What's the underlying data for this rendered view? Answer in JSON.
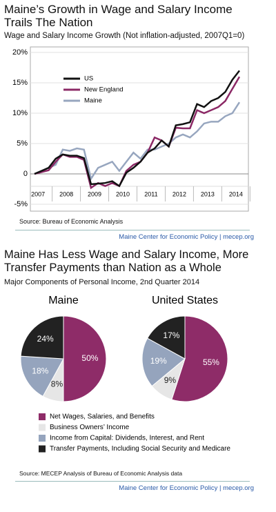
{
  "chart_data": [
    {
      "type": "line",
      "title": "Maine’s Growth in Wage and Salary Income Trails The Nation",
      "subtitle": "Wage and Salary Income Growth (Not inflation-adjusted, 2007Q1=0)",
      "categories": [
        null,
        "2007",
        null,
        null,
        null,
        "2008",
        null,
        null,
        null,
        "2009",
        null,
        null,
        null,
        "2010",
        null,
        null,
        null,
        "2011",
        null,
        null,
        null,
        "2012",
        null,
        null,
        null,
        "2013",
        null,
        null,
        null,
        "2014"
      ],
      "ylim": [
        -5,
        20
      ],
      "yticks": [
        {
          "value": -5,
          "label": "-5%"
        },
        0,
        {
          "value": 5,
          "label": "5%"
        },
        {
          "value": 10,
          "label": "10%"
        },
        {
          "value": 15,
          "label": "15%"
        },
        {
          "value": 20,
          "label": "20%"
        }
      ],
      "grid": true,
      "series": [
        {
          "name": "US",
          "color": "#111111",
          "values": [
            0,
            0.5,
            1,
            2.5,
            3.2,
            3,
            3,
            2.6,
            -1.7,
            -1.6,
            -1.5,
            -1.2,
            -2,
            0.2,
            1,
            2,
            3.5,
            4.2,
            5.5,
            4.5,
            8,
            8.2,
            8.5,
            11.5,
            11,
            12,
            12.5,
            13.5,
            15.5,
            17
          ]
        },
        {
          "name": "New England",
          "color": "#8b2865",
          "values": [
            0,
            0.3,
            0.6,
            2,
            3.2,
            2.8,
            2.8,
            2.3,
            -2.3,
            -1.5,
            -2,
            -1.5,
            -2,
            0.5,
            1.5,
            2,
            3.5,
            6,
            5.5,
            4.5,
            7.6,
            7.5,
            7.5,
            10.5,
            10,
            10.5,
            11,
            12,
            14,
            16
          ]
        },
        {
          "name": "Maine",
          "color": "#97a6bf",
          "values": [
            0,
            0.5,
            1,
            1.5,
            4,
            3.8,
            4.2,
            4,
            -0.8,
            1,
            1.5,
            2,
            0.5,
            2,
            3.5,
            2.5,
            4,
            4,
            4.5,
            5,
            6,
            6.5,
            6,
            7,
            8.3,
            8.6,
            8.6,
            9.5,
            10,
            11.8
          ]
        }
      ],
      "source": "Source: Bureau of Economic Analysis",
      "footer": "Maine Center for Economic Policy | mecep.org"
    },
    {
      "type": "pie",
      "title": "Maine",
      "categories": [
        "Net Wages, Salaries, and Benefits",
        "Business Owners’ Income",
        "Income from Capital: Dividends, Interest, and Rent",
        "Transfer Payments, Including Social Security and Medicare"
      ],
      "values": [
        50,
        8,
        18,
        24
      ],
      "value_labels": [
        "50%",
        "8%",
        "18%",
        "24%"
      ],
      "colors": [
        "#8e2c68",
        "#e6e6e6",
        "#95a4bd",
        "#222222"
      ]
    },
    {
      "type": "pie",
      "title": "United States",
      "categories": [
        "Net Wages, Salaries, and Benefits",
        "Business Owners’ Income",
        "Income from Capital: Dividends, Interest, and Rent",
        "Transfer Payments, Including Social Security and Medicare"
      ],
      "values": [
        55,
        9,
        19,
        17
      ],
      "value_labels": [
        "55%",
        "9%",
        "19%",
        "17%"
      ],
      "colors": [
        "#8e2c68",
        "#e6e6e6",
        "#95a4bd",
        "#222222"
      ]
    }
  ],
  "section_2": {
    "title": "Maine Has Less Wage and Salary Income, More Transfer Payments than Nation as a Whole",
    "subtitle": "Major Components of Personal Income, 2nd Quarter 2014",
    "source": "Source: MECEP Analysis of Bureau of Economic Analysis data",
    "footer": "Maine Center for Economic Policy | mecep.org"
  }
}
